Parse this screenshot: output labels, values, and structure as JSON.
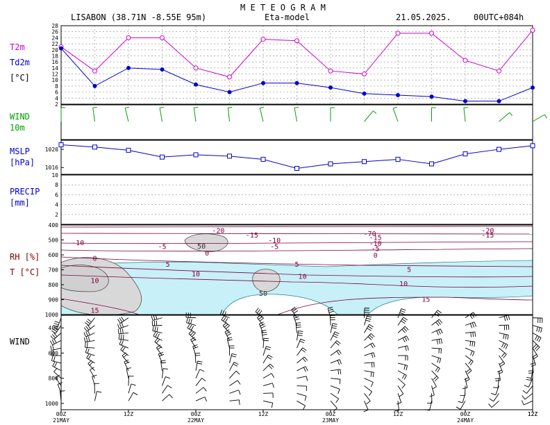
{
  "header": {
    "title": "M E T E O G R A M",
    "station": "LISABON (38.71N  -8.55E  95m)",
    "model": "Eta-model",
    "date": "21.05.2025.",
    "run": "00UTC+084h"
  },
  "labels": {
    "t2m": "T2m",
    "td2m": "Td2m",
    "unit_c": "[°C]",
    "wind10": "WIND",
    "wind10_b": "10m",
    "mslp": "MSLP",
    "mslp_unit": "[hPa]",
    "precip": "PRECIP",
    "precip_unit": "[mm]",
    "rh": "RH [%]",
    "t": "T [°C]",
    "wind": "WIND"
  },
  "colors": {
    "t2m": "#cc00cc",
    "td2m": "#0000cc",
    "wind10": "#00a000",
    "mslp_label": "#0000cc",
    "precip_label": "#0000cc",
    "rh_label": "#800000",
    "contour": "#800040",
    "humid_fill": "#c8f0f8",
    "dry_fill": "#d8d8d8"
  },
  "x_ticks": [
    {
      "label": "00Z",
      "date": "21MAY"
    },
    {
      "label": "12Z",
      "date": ""
    },
    {
      "label": "00Z",
      "date": "22MAY"
    },
    {
      "label": "12Z",
      "date": ""
    },
    {
      "label": "00Z",
      "date": "23MAY"
    },
    {
      "label": "12Z",
      "date": ""
    },
    {
      "label": "00Z",
      "date": "24MAY"
    },
    {
      "label": "12Z",
      "date": ""
    }
  ],
  "chart_data": [
    {
      "type": "line",
      "name": "temperature",
      "x_hours": [
        0,
        6,
        12,
        18,
        24,
        30,
        36,
        42,
        48,
        54,
        60,
        66,
        72,
        78,
        84
      ],
      "series": [
        {
          "name": "T2m",
          "values": [
            21,
            13,
            24,
            24,
            14,
            11,
            23.5,
            23,
            13,
            12,
            25.5,
            25.5,
            16.5,
            13,
            26.5
          ]
        },
        {
          "name": "Td2m",
          "values": [
            20.5,
            8,
            14,
            13.5,
            8.5,
            6,
            9,
            9,
            7.5,
            5.5,
            5,
            4.5,
            3,
            3,
            7.5
          ]
        }
      ],
      "yticks": [
        2,
        4,
        6,
        8,
        10,
        12,
        14,
        16,
        18,
        20,
        22,
        24,
        26,
        28
      ],
      "ylim": [
        2,
        28
      ]
    },
    {
      "type": "line",
      "name": "mslp",
      "x_hours": [
        0,
        6,
        12,
        18,
        24,
        30,
        36,
        42,
        48,
        54,
        60,
        66,
        72,
        78,
        84
      ],
      "series": [
        {
          "name": "MSLP",
          "values": [
            1021,
            1020.5,
            1019.8,
            1018.3,
            1018.8,
            1018.5,
            1017.8,
            1015.8,
            1016.8,
            1017.3,
            1017.8,
            1016.8,
            1019,
            1020,
            1020.8
          ]
        }
      ],
      "yticks": [
        1016,
        1020
      ],
      "ylim": [
        1014.5,
        1022
      ]
    },
    {
      "type": "bar",
      "name": "precip",
      "x_hours": [],
      "values": [],
      "yticks": [
        2,
        4,
        6,
        8,
        10
      ],
      "ylim": [
        0,
        10
      ]
    },
    {
      "type": "heatmap",
      "name": "rh_temperature_cross_section",
      "yticks": [
        400,
        500,
        600,
        700,
        800,
        900,
        1000
      ],
      "temperature_contour_labels": [
        {
          "value": "-20",
          "hour": 28,
          "p": 445
        },
        {
          "value": "-15",
          "hour": 34,
          "p": 475
        },
        {
          "value": "-10",
          "hour": 38,
          "p": 510
        },
        {
          "value": "-5",
          "hour": 38,
          "p": 550
        },
        {
          "value": "0",
          "hour": 26,
          "p": 595
        },
        {
          "value": "-5",
          "hour": 18,
          "p": 550
        },
        {
          "value": "-10",
          "hour": 3,
          "p": 525
        },
        {
          "value": "0",
          "hour": 6,
          "p": 630
        },
        {
          "value": "5",
          "hour": 19,
          "p": 670
        },
        {
          "value": "10",
          "hour": 24,
          "p": 735
        },
        {
          "value": "10",
          "hour": 6,
          "p": 780
        },
        {
          "value": "15",
          "hour": 6,
          "p": 980
        },
        {
          "value": "5",
          "hour": 42,
          "p": 670
        },
        {
          "value": "10",
          "hour": 43,
          "p": 750
        },
        {
          "value": "-70",
          "hour": 55,
          "p": 465
        },
        {
          "value": "-15",
          "hour": 56,
          "p": 490
        },
        {
          "value": "-10",
          "hour": 56,
          "p": 530
        },
        {
          "value": "-5",
          "hour": 56,
          "p": 565
        },
        {
          "value": "0",
          "hour": 56,
          "p": 610
        },
        {
          "value": "5",
          "hour": 62,
          "p": 705
        },
        {
          "value": "10",
          "hour": 61,
          "p": 800
        },
        {
          "value": "15",
          "hour": 65,
          "p": 905
        },
        {
          "value": "-20",
          "hour": 76,
          "p": 445
        },
        {
          "value": "-15",
          "hour": 76,
          "p": 475
        }
      ],
      "rh_contour_labels": [
        {
          "value": "50",
          "hour": 25,
          "p": 545
        },
        {
          "value": "50",
          "hour": 36,
          "p": 860
        }
      ]
    }
  ],
  "wind_profile": {
    "yticks": [
      400,
      600,
      800,
      1000
    ]
  }
}
